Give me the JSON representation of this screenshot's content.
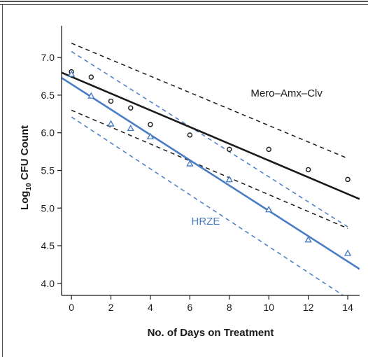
{
  "chart_data": {
    "type": "scatter",
    "xlabel": "No. of Days on Treatment",
    "ylabel": {
      "base": "Log",
      "sub": "10",
      "rest": " CFU Count"
    },
    "xlim": [
      -0.5,
      14.6
    ],
    "ylim": [
      3.84,
      7.42
    ],
    "xticks": [
      0,
      2,
      4,
      6,
      8,
      10,
      12,
      14
    ],
    "yticks": [
      4.0,
      4.5,
      5.0,
      5.5,
      6.0,
      6.5,
      7.0
    ],
    "ytick_labels": [
      "4.0",
      "4.5",
      "5.0",
      "5.5",
      "6.0",
      "6.5",
      "7.0"
    ],
    "grid": false,
    "series": [
      {
        "name": "Mero–Amx–Clv",
        "marker": "circle",
        "color": "#1a1a1a",
        "points": [
          [
            0,
            6.81
          ],
          [
            1,
            6.74
          ],
          [
            2,
            6.42
          ],
          [
            3,
            6.33
          ],
          [
            4,
            6.11
          ],
          [
            6,
            5.97
          ],
          [
            8,
            5.78
          ],
          [
            10,
            5.78
          ],
          [
            12,
            5.51
          ],
          [
            14,
            5.38
          ]
        ],
        "fit": [
          [
            -0.5,
            6.8
          ],
          [
            14.6,
            5.12
          ]
        ],
        "ci_upper": [
          [
            0,
            7.19
          ],
          [
            14,
            5.66
          ]
        ],
        "ci_lower": [
          [
            0,
            6.3
          ],
          [
            14,
            4.73
          ]
        ]
      },
      {
        "name": "HRZE",
        "marker": "triangle",
        "color": "#4a7ec4",
        "points": [
          [
            0,
            6.78
          ],
          [
            1,
            6.49
          ],
          [
            2,
            6.12
          ],
          [
            3,
            6.06
          ],
          [
            4,
            5.95
          ],
          [
            6,
            5.59
          ],
          [
            8,
            5.38
          ],
          [
            10,
            4.98
          ],
          [
            12,
            4.58
          ],
          [
            14,
            4.4
          ]
        ],
        "fit": [
          [
            -0.5,
            6.73
          ],
          [
            14.6,
            4.19
          ]
        ],
        "ci_upper": [
          [
            0,
            7.08
          ],
          [
            14,
            4.75
          ]
        ],
        "ci_lower": [
          [
            0,
            6.21
          ],
          [
            14,
            3.8
          ]
        ]
      }
    ],
    "annotations": [
      {
        "text": "Mero–Amx–Clv",
        "series": 0,
        "x": 10.9,
        "y": 6.48
      },
      {
        "text": "HRZE",
        "series": 1,
        "x": 6.8,
        "y": 4.78
      }
    ]
  }
}
